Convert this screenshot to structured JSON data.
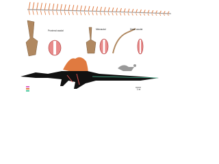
{
  "panels": [
    {
      "label": "Proximal caudal"
    },
    {
      "label": "Midcaudal"
    },
    {
      "label": "Distal caudal"
    }
  ],
  "scale_bar": "1 m"
}
